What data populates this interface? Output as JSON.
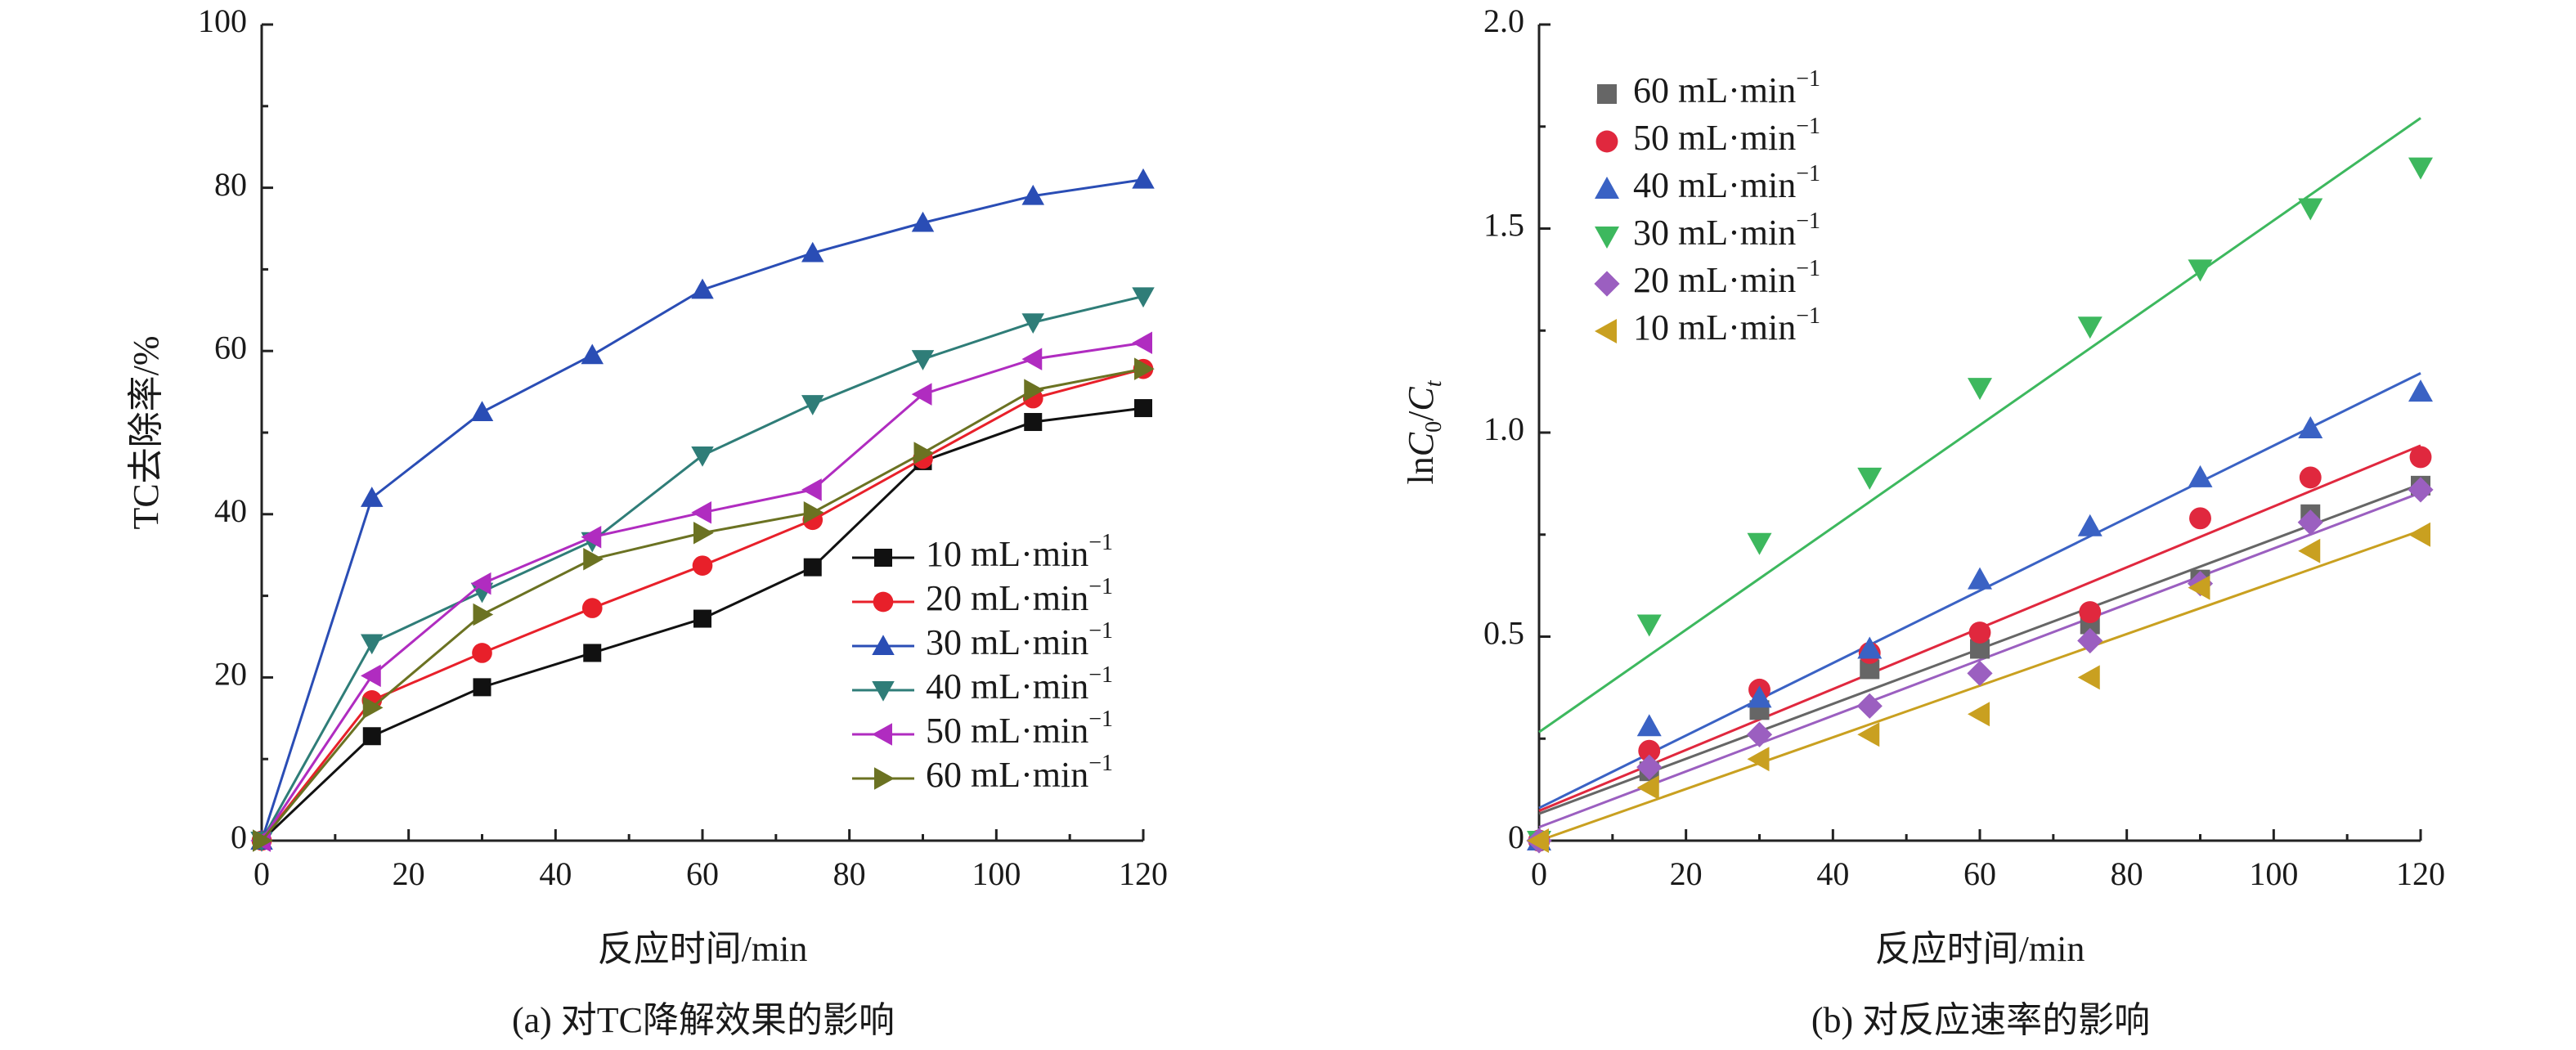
{
  "chart_data": [
    {
      "id": "a",
      "type": "line",
      "caption": "(a) 对TC降解效果的影响",
      "xlabel": "反应时间/min",
      "ylabel": "TC去除率/%",
      "xlim": [
        0,
        120
      ],
      "ylim": [
        0,
        100
      ],
      "xticks": [
        "0",
        "20",
        "40",
        "60",
        "80",
        "100",
        "120"
      ],
      "yticks": [
        "0",
        "20",
        "40",
        "60",
        "80",
        "100"
      ],
      "legend_position": "bottom-right",
      "x": [
        0,
        15,
        30,
        45,
        60,
        75,
        90,
        105,
        120
      ],
      "series": [
        {
          "name": "10 mL·min",
          "sup": "−1",
          "color": "#111111",
          "marker": "square",
          "values": [
            0,
            12.8,
            18.8,
            23.0,
            27.2,
            33.5,
            46.5,
            51.3,
            53.0
          ]
        },
        {
          "name": "20 mL·min",
          "sup": "−1",
          "color": "#e8202a",
          "marker": "circle",
          "values": [
            0,
            17.2,
            23.0,
            28.5,
            33.7,
            39.3,
            46.8,
            54.2,
            57.8
          ]
        },
        {
          "name": "30 mL·min",
          "sup": "−1",
          "color": "#2a4db5",
          "marker": "triangle-up",
          "values": [
            0,
            42.0,
            52.5,
            59.5,
            67.5,
            72.0,
            75.7,
            79.0,
            81.0
          ]
        },
        {
          "name": "40 mL·min",
          "sup": "−1",
          "color": "#2f7d78",
          "marker": "triangle-down",
          "values": [
            0,
            24.2,
            30.5,
            36.7,
            47.2,
            53.5,
            59.0,
            63.5,
            66.7
          ]
        },
        {
          "name": "50 mL·min",
          "sup": "−1",
          "color": "#b02cc0",
          "marker": "triangle-left",
          "values": [
            0,
            20.2,
            31.5,
            37.2,
            40.2,
            43.0,
            54.7,
            59.0,
            61.0
          ]
        },
        {
          "name": "60 mL·min",
          "sup": "−1",
          "color": "#6b7222",
          "marker": "triangle-right",
          "values": [
            0,
            16.3,
            27.7,
            34.5,
            37.7,
            40.2,
            47.5,
            55.2,
            57.8
          ]
        }
      ]
    },
    {
      "id": "b",
      "type": "scatter",
      "caption": "(b) 对反应速率的影响",
      "xlabel": "反应时间/min",
      "ylabel": "lnC0/Ct",
      "xlim": [
        0,
        120
      ],
      "ylim": [
        0,
        2.0
      ],
      "xticks": [
        "0",
        "20",
        "40",
        "60",
        "80",
        "100",
        "120"
      ],
      "yticks": [
        "0",
        "0.5",
        "1.0",
        "1.5",
        "2.0"
      ],
      "legend_position": "top-left",
      "x": [
        0,
        15,
        30,
        45,
        60,
        75,
        90,
        105,
        120
      ],
      "series": [
        {
          "name": "60 mL·min",
          "sup": "−1",
          "color": "#666666",
          "marker": "square",
          "values": [
            0,
            0.17,
            0.32,
            0.42,
            0.47,
            0.53,
            0.64,
            0.8,
            0.87
          ],
          "fit": [
            0.066,
            0.00673
          ]
        },
        {
          "name": "50 mL·min",
          "sup": "−1",
          "color": "#e0283e",
          "marker": "circle",
          "values": [
            0,
            0.22,
            0.37,
            0.46,
            0.51,
            0.56,
            0.79,
            0.89,
            0.94
          ],
          "fit": [
            0.073,
            0.00746
          ]
        },
        {
          "name": "40 mL·min",
          "sup": "−1",
          "color": "#3a62c4",
          "marker": "triangle-up",
          "values": [
            0,
            0.28,
            0.35,
            0.47,
            0.64,
            0.77,
            0.89,
            1.01,
            1.1
          ],
          "fit": [
            0.08,
            0.00888
          ]
        },
        {
          "name": "30 mL·min",
          "sup": "−1",
          "color": "#3db85e",
          "marker": "triangle-down",
          "values": [
            0,
            0.53,
            0.73,
            0.89,
            1.11,
            1.26,
            1.4,
            1.55,
            1.65
          ],
          "fit": [
            0.266,
            0.01254
          ]
        },
        {
          "name": "20 mL·min",
          "sup": "−1",
          "color": "#9b5fc0",
          "marker": "diamond",
          "values": [
            0,
            0.18,
            0.26,
            0.33,
            0.41,
            0.49,
            0.63,
            0.78,
            0.86
          ],
          "fit": [
            0.033,
            0.00683
          ]
        },
        {
          "name": "10 mL·min",
          "sup": "−1",
          "color": "#c9a020",
          "marker": "triangle-left",
          "values": [
            0,
            0.13,
            0.2,
            0.26,
            0.31,
            0.4,
            0.62,
            0.71,
            0.75
          ],
          "fit": [
            0.0,
            0.00633
          ]
        }
      ]
    }
  ]
}
